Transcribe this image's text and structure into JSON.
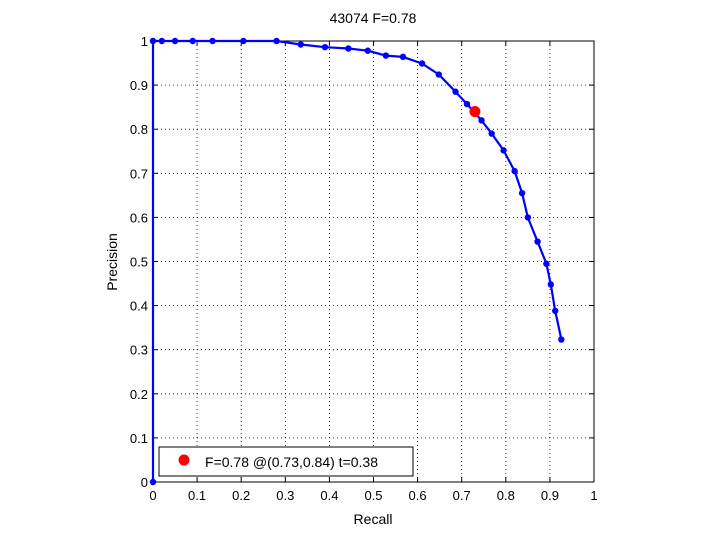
{
  "chart_data": {
    "type": "line",
    "title": "43074 F=0.78",
    "xlabel": "Recall",
    "ylabel": "Precision",
    "xlim": [
      0,
      1
    ],
    "ylim": [
      0,
      1
    ],
    "grid": true,
    "xticks": [
      "0",
      "0.1",
      "0.2",
      "0.3",
      "0.4",
      "0.5",
      "0.6",
      "0.7",
      "0.8",
      "0.9",
      "1"
    ],
    "yticks": [
      "0",
      "0.1",
      "0.2",
      "0.3",
      "0.4",
      "0.5",
      "0.6",
      "0.7",
      "0.8",
      "0.9",
      "1"
    ],
    "series": [
      {
        "color": "#0000ff",
        "points": [
          [
            0.0,
            0.0
          ],
          [
            0.0,
            1.0
          ],
          [
            0.02,
            1.0
          ],
          [
            0.05,
            1.0
          ],
          [
            0.09,
            1.0
          ],
          [
            0.135,
            1.0
          ],
          [
            0.205,
            1.0
          ],
          [
            0.28,
            1.0
          ],
          [
            0.335,
            0.992
          ],
          [
            0.39,
            0.986
          ],
          [
            0.443,
            0.983
          ],
          [
            0.487,
            0.978
          ],
          [
            0.528,
            0.967
          ],
          [
            0.567,
            0.964
          ],
          [
            0.61,
            0.949
          ],
          [
            0.648,
            0.924
          ],
          [
            0.686,
            0.885
          ],
          [
            0.712,
            0.857
          ],
          [
            0.745,
            0.82
          ],
          [
            0.768,
            0.79
          ],
          [
            0.795,
            0.752
          ],
          [
            0.82,
            0.705
          ],
          [
            0.837,
            0.655
          ],
          [
            0.85,
            0.6
          ],
          [
            0.872,
            0.545
          ],
          [
            0.892,
            0.495
          ],
          [
            0.902,
            0.448
          ],
          [
            0.912,
            0.388
          ],
          [
            0.926,
            0.323
          ]
        ]
      }
    ],
    "highlight": {
      "x": 0.73,
      "y": 0.84,
      "color": "#ff0000"
    },
    "legend": {
      "text": "F=0.78 @(0.73,0.84) t=0.38",
      "placement": "bottom-left"
    }
  }
}
